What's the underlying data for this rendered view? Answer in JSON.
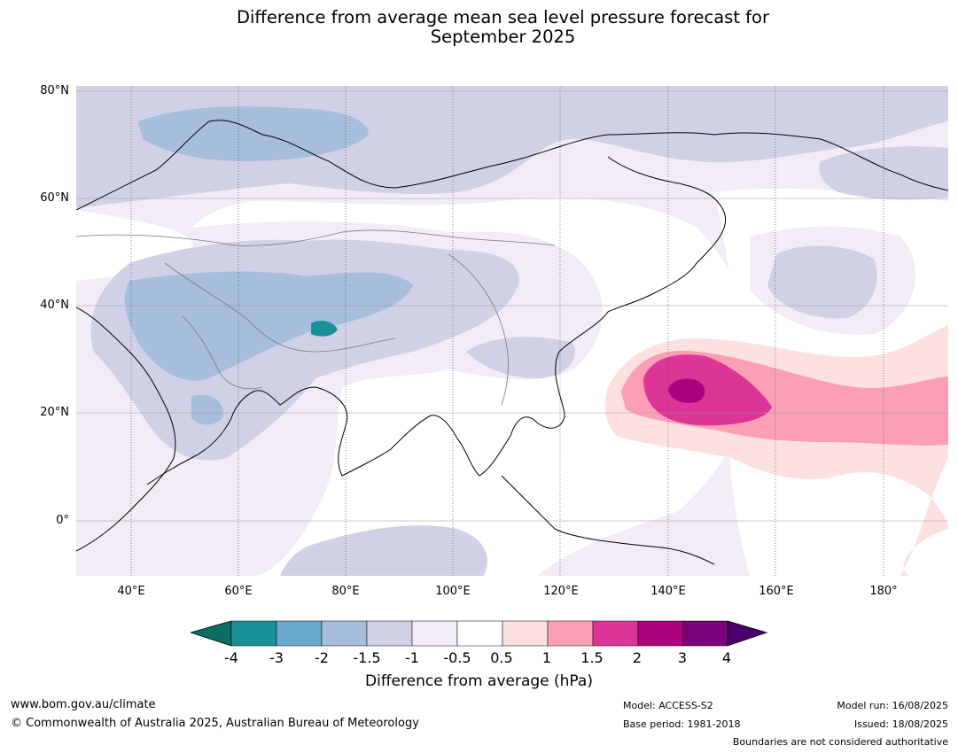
{
  "title_line1": "Difference from average mean sea level pressure forecast for",
  "title_line2": "September 2025",
  "lat_ticks": [
    "80°N",
    "60°N",
    "40°N",
    "20°N",
    "0°"
  ],
  "lon_ticks": [
    "40°E",
    "60°E",
    "80°E",
    "100°E",
    "120°E",
    "140°E",
    "160°E",
    "180°"
  ],
  "colorbar": {
    "label": "Difference from average (hPa)",
    "ticks": [
      "-4",
      "-3",
      "-2",
      "-1.5",
      "-1",
      "-0.5",
      "0.5",
      "1",
      "1.5",
      "2",
      "3",
      "4"
    ],
    "colors": {
      "lt_-4": "#0b6e60",
      "-4_-3": "#1a9099",
      "-3_-2": "#67a9cf",
      "-2_-1.5": "#a6bddb",
      "-1.5_-1": "#d0d1e6",
      "-1_-0.5": "#f2ecf6",
      "-0.5_0.5": "#ffffff",
      "0.5_1": "#fde0e0",
      "1_1.5": "#fa9fb5",
      "1.5_2": "#dd3497",
      "2_3": "#ae017e",
      "3_4": "#7a0177",
      "gt_4": "#49006a"
    }
  },
  "footer": {
    "website": "www.bom.gov.au/climate",
    "copyright": "© Commonwealth of Australia 2025, Australian Bureau of Meteorology",
    "model": "Model: ACCESS-S2",
    "base_period": "Base period: 1981-2018",
    "model_run": "Model run: 16/08/2025",
    "issued": "Issued: 18/08/2025",
    "disclaimer": "Boundaries are not considered authoritative"
  }
}
